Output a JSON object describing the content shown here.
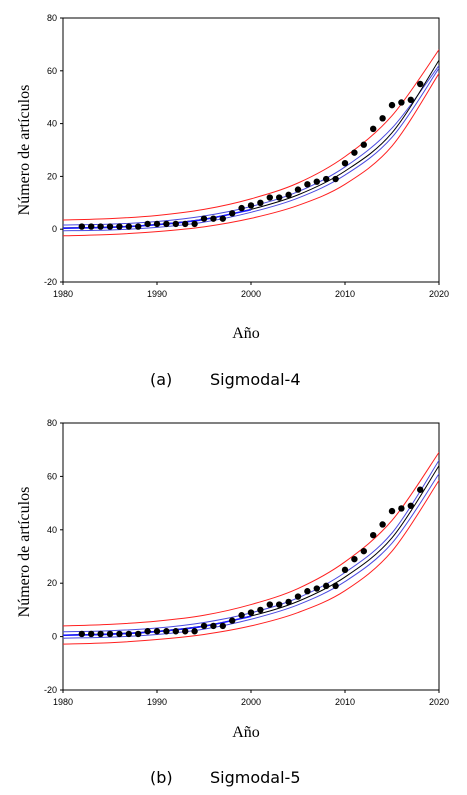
{
  "chart_data": [
    {
      "type": "line",
      "caption_letter": "(a)",
      "caption_title": "Sigmodal-4",
      "xlabel": "Año",
      "ylabel": "Número de artículos",
      "xlim": [
        1980,
        2020
      ],
      "ylim": [
        -20,
        80
      ],
      "xticks": [
        1980,
        1990,
        2000,
        2010,
        2020
      ],
      "yticks": [
        -20,
        0,
        20,
        40,
        60,
        80
      ],
      "grid": false,
      "legend": "none",
      "points": {
        "x": [
          1982,
          1983,
          1984,
          1985,
          1986,
          1987,
          1988,
          1989,
          1990,
          1991,
          1992,
          1993,
          1994,
          1995,
          1996,
          1997,
          1998,
          1999,
          2000,
          2001,
          2002,
          2003,
          2004,
          2005,
          2006,
          2007,
          2008,
          2009,
          2010,
          2011,
          2012,
          2013,
          2014,
          2015,
          2016,
          2017,
          2018
        ],
        "y": [
          1,
          1,
          1,
          1,
          1,
          1,
          1,
          2,
          2,
          2,
          2,
          2,
          2,
          4,
          4,
          4,
          6,
          8,
          9,
          10,
          12,
          12,
          13,
          15,
          17,
          18,
          19,
          19,
          25,
          29,
          32,
          38,
          42,
          47,
          48,
          49,
          55
        ]
      },
      "curves": [
        {
          "color": "#ff2020",
          "x": [
            1980,
            1985,
            1990,
            1995,
            2000,
            2005,
            2010,
            2015,
            2020
          ],
          "y": [
            3.5,
            4.0,
            5.2,
            7.5,
            11.5,
            17.5,
            27.5,
            43,
            68
          ]
        },
        {
          "color": "#4a4ae0",
          "x": [
            1980,
            1985,
            1990,
            1995,
            2000,
            2005,
            2010,
            2015,
            2020
          ],
          "y": [
            1.6,
            1.9,
            2.9,
            5.0,
            8.6,
            14.2,
            23.6,
            38.3,
            62
          ]
        },
        {
          "color": "#000000",
          "x": [
            1980,
            1985,
            1990,
            1995,
            2000,
            2005,
            2010,
            2015,
            2020
          ],
          "y": [
            0.5,
            0.8,
            1.8,
            3.8,
            7.5,
            13.0,
            22.0,
            36.5,
            64
          ]
        },
        {
          "color": "#4a4ae0",
          "x": [
            1980,
            1985,
            1990,
            1995,
            2000,
            2005,
            2010,
            2015,
            2020
          ],
          "y": [
            -0.6,
            -0.3,
            0.7,
            2.7,
            6.4,
            11.8,
            20.5,
            34.8,
            61
          ]
        },
        {
          "color": "#ff2020",
          "x": [
            1980,
            1985,
            1990,
            1995,
            2000,
            2005,
            2010,
            2015,
            2020
          ],
          "y": [
            -2.5,
            -2.0,
            -0.9,
            0.9,
            4.1,
            9.0,
            17.0,
            31.5,
            59
          ]
        },
        {
          "color": "#1a1aff",
          "x": [
            1980,
            1985,
            1990,
            1995,
            2000
          ],
          "y": [
            0.4,
            0.7,
            1.7,
            3.7,
            7.4
          ]
        }
      ]
    },
    {
      "type": "line",
      "caption_letter": "(b)",
      "caption_title": "Sigmodal-5",
      "xlabel": "Año",
      "ylabel": "Número de artículos",
      "xlim": [
        1980,
        2020
      ],
      "ylim": [
        -20,
        80
      ],
      "xticks": [
        1980,
        1990,
        2000,
        2010,
        2020
      ],
      "yticks": [
        -20,
        0,
        20,
        40,
        60,
        80
      ],
      "grid": false,
      "legend": "none",
      "points": {
        "x": [
          1982,
          1983,
          1984,
          1985,
          1986,
          1987,
          1988,
          1989,
          1990,
          1991,
          1992,
          1993,
          1994,
          1995,
          1996,
          1997,
          1998,
          1999,
          2000,
          2001,
          2002,
          2003,
          2004,
          2005,
          2006,
          2007,
          2008,
          2009,
          2010,
          2011,
          2012,
          2013,
          2014,
          2015,
          2016,
          2017,
          2018
        ],
        "y": [
          1,
          1,
          1,
          1,
          1,
          1,
          1,
          2,
          2,
          2,
          2,
          2,
          2,
          4,
          4,
          4,
          6,
          8,
          9,
          10,
          12,
          12,
          13,
          15,
          17,
          18,
          19,
          19,
          25,
          29,
          32,
          38,
          42,
          47,
          48,
          49,
          55
        ]
      },
      "curves": [
        {
          "color": "#ff2020",
          "x": [
            1980,
            1985,
            1990,
            1995,
            2000,
            2005,
            2010,
            2015,
            2020
          ],
          "y": [
            4.0,
            4.6,
            5.8,
            8.0,
            12.0,
            18.0,
            28.0,
            43.5,
            69
          ]
        },
        {
          "color": "#4a4ae0",
          "x": [
            1980,
            1985,
            1990,
            1995,
            2000,
            2005,
            2010,
            2015,
            2020
          ],
          "y": [
            1.8,
            2.2,
            3.2,
            5.3,
            8.9,
            14.5,
            24.0,
            38.8,
            66
          ]
        },
        {
          "color": "#000000",
          "x": [
            1980,
            1985,
            1990,
            1995,
            2000,
            2005,
            2010,
            2015,
            2020
          ],
          "y": [
            0.6,
            1.0,
            2.0,
            4.0,
            7.7,
            13.2,
            22.3,
            37.0,
            64
          ]
        },
        {
          "color": "#4a4ae0",
          "x": [
            1980,
            1985,
            1990,
            1995,
            2000,
            2005,
            2010,
            2015,
            2020
          ],
          "y": [
            -0.6,
            -0.2,
            0.8,
            2.8,
            6.5,
            11.9,
            20.6,
            35.0,
            61
          ]
        },
        {
          "color": "#ff2020",
          "x": [
            1980,
            1985,
            1990,
            1995,
            2000,
            2005,
            2010,
            2015,
            2020
          ],
          "y": [
            -2.8,
            -2.3,
            -1.1,
            0.8,
            4.0,
            9.0,
            17.2,
            32.0,
            58.5
          ]
        },
        {
          "color": "#1a1aff",
          "x": [
            1980,
            1985,
            1990,
            1995,
            2000
          ],
          "y": [
            0.5,
            0.9,
            1.9,
            3.9,
            7.6
          ]
        }
      ]
    }
  ]
}
